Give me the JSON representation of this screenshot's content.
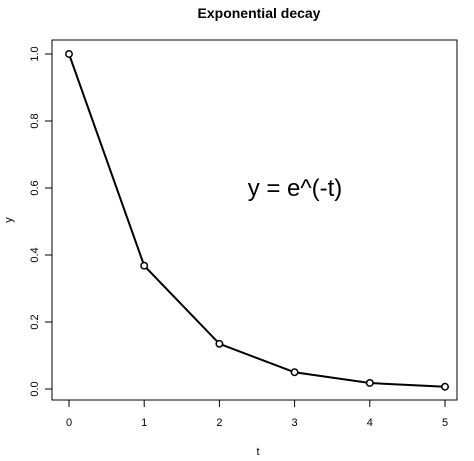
{
  "chart_data": {
    "type": "line",
    "title": "Exponential decay",
    "xlabel": "t",
    "ylabel": "y",
    "x": [
      0,
      1,
      2,
      3,
      4,
      5
    ],
    "y": [
      1.0,
      0.368,
      0.135,
      0.05,
      0.018,
      0.0067
    ],
    "xlim": [
      0,
      5
    ],
    "ylim": [
      0,
      1.0
    ],
    "xticks": [
      "0",
      "1",
      "2",
      "3",
      "4",
      "5"
    ],
    "yticks": [
      "0.0",
      "0.2",
      "0.4",
      "0.6",
      "0.8",
      "1.0"
    ],
    "annotation": "y = e^(-t)",
    "grid": false,
    "marker": "open-circle",
    "line_color": "#000000"
  }
}
